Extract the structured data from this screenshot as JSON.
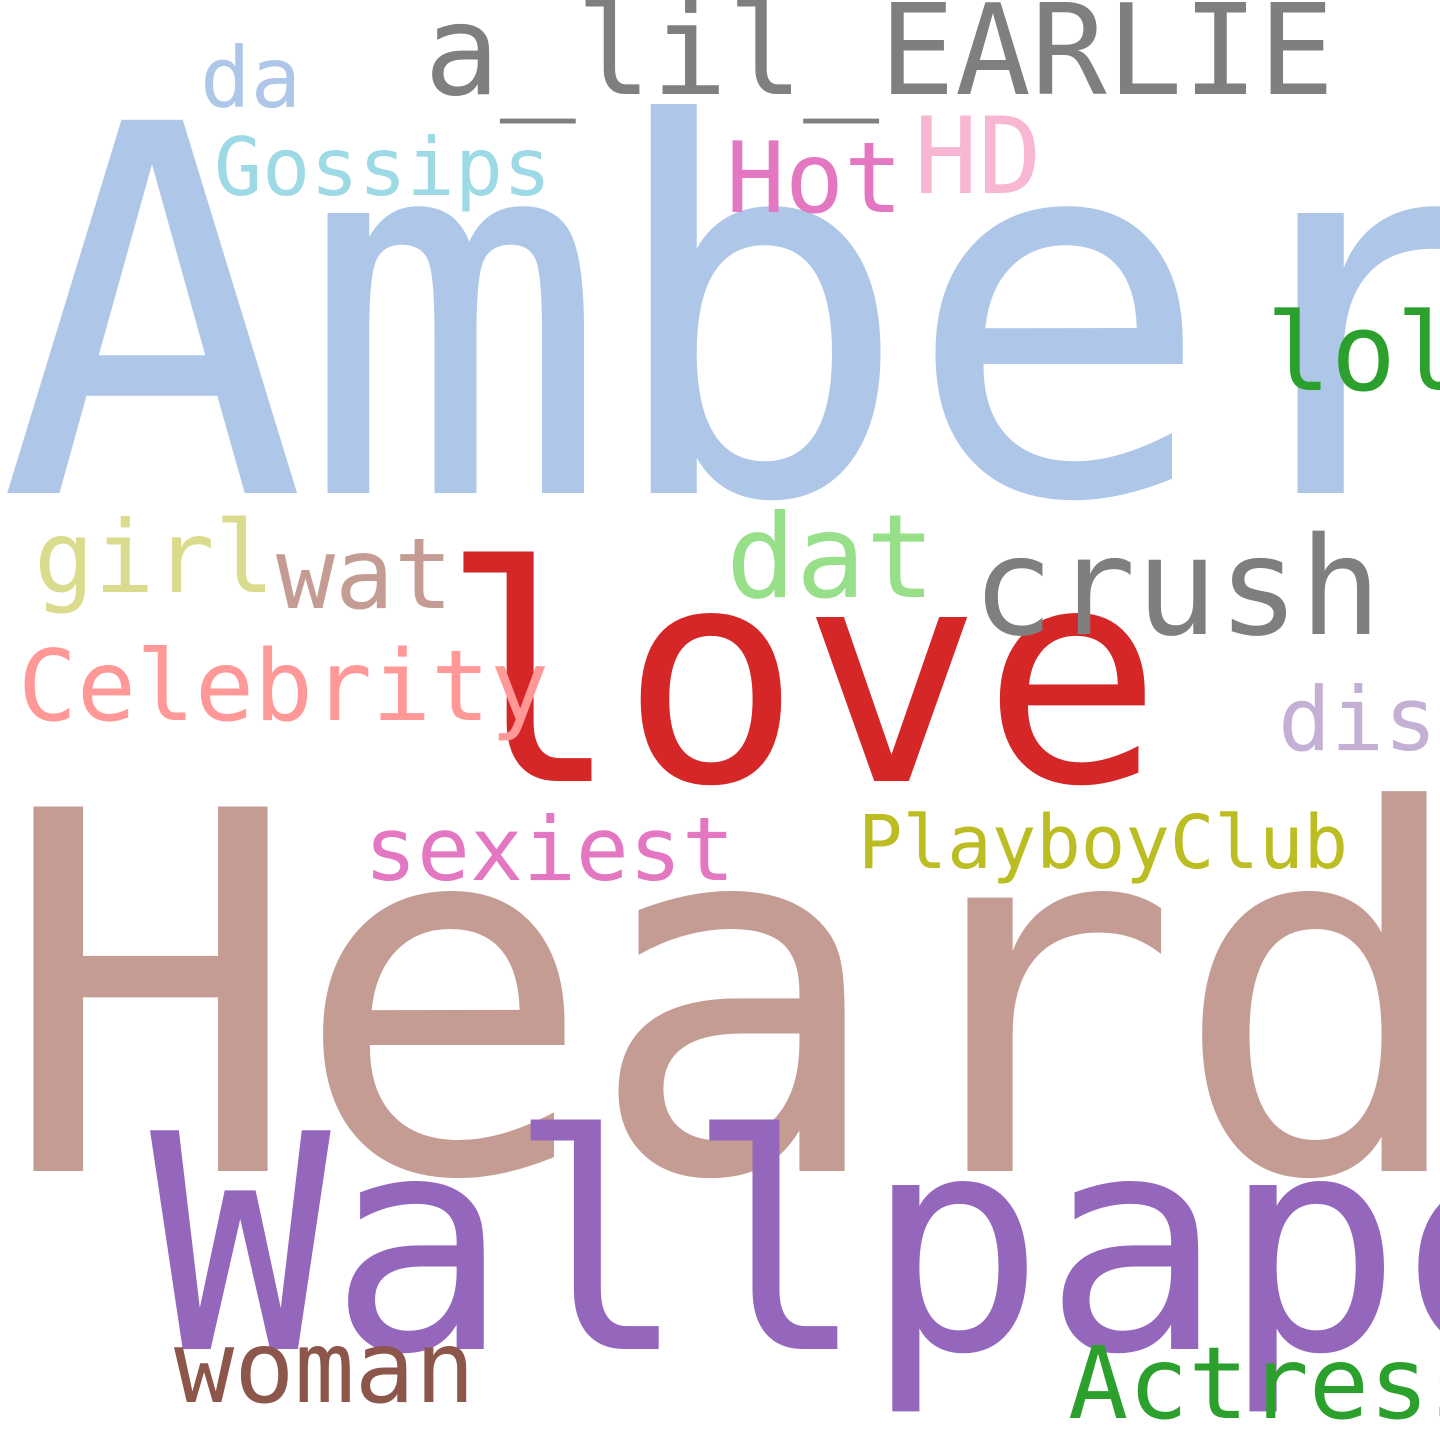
{
  "words": [
    {
      "text": "Amber",
      "color": "#aec7e8"
    },
    {
      "text": "Heard",
      "color": "#c49c94"
    },
    {
      "text": "love",
      "color": "#d62728"
    },
    {
      "text": "Wallpaper",
      "color": "#9467bd"
    },
    {
      "text": "a_lil_EARLIE",
      "color": "#7f7f7f"
    },
    {
      "text": "crush",
      "color": "#7f7f7f"
    },
    {
      "text": "dat",
      "color": "#98df8a"
    },
    {
      "text": "lol",
      "color": "#2ca02c"
    },
    {
      "text": "HD",
      "color": "#f7b6d2"
    },
    {
      "text": "Hot",
      "color": "#e377c2"
    },
    {
      "text": "Gossips",
      "color": "#9edae5"
    },
    {
      "text": "da",
      "color": "#aec7e8"
    },
    {
      "text": "girl",
      "color": "#dbdb8d"
    },
    {
      "text": "wat",
      "color": "#c49c94"
    },
    {
      "text": "Celebrity",
      "color": "#ff9896"
    },
    {
      "text": "dis",
      "color": "#c5b0d5"
    },
    {
      "text": "sexiest",
      "color": "#e377c2"
    },
    {
      "text": "PlayboyClub",
      "color": "#bcbd22"
    },
    {
      "text": "woman",
      "color": "#8c564b"
    },
    {
      "text": "Actress",
      "color": "#2ca02c"
    }
  ]
}
